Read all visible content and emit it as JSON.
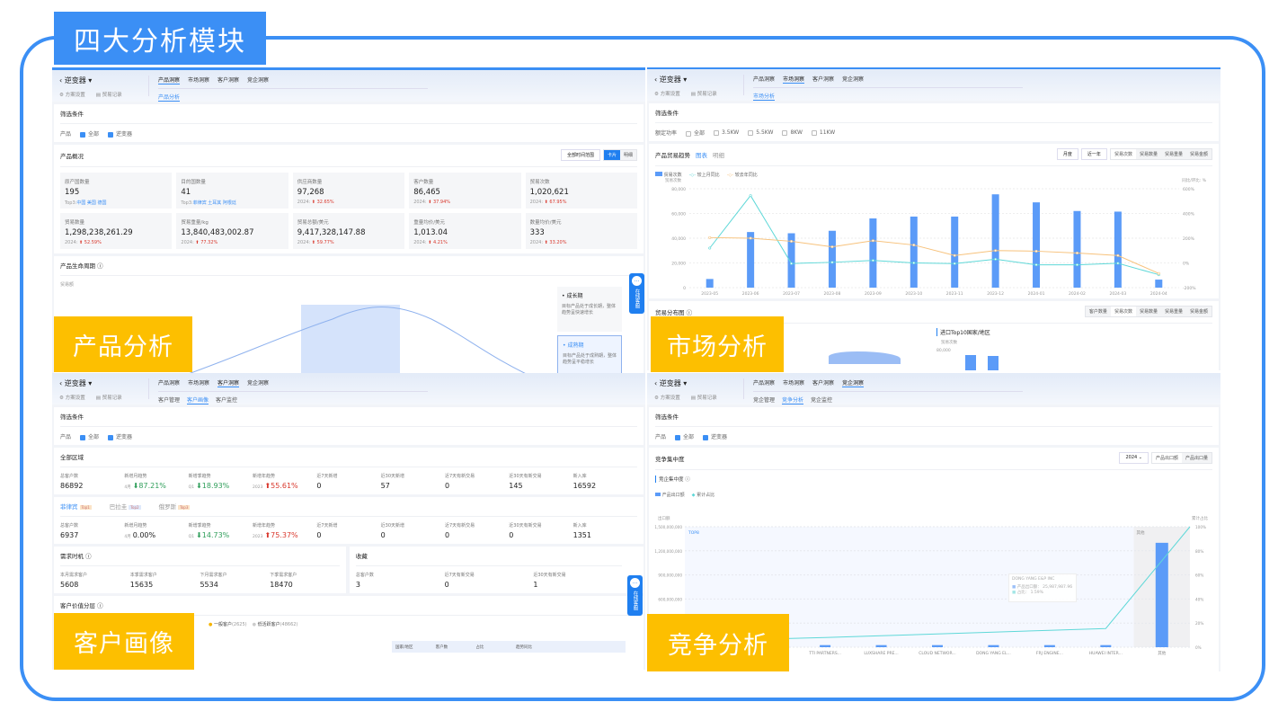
{
  "title": "四大分析模块",
  "colors": {
    "frame": "#3b8ff5",
    "label_bg": "#fdbf00",
    "bar": "#5b9bf8",
    "line_mom": "#5fd8d8",
    "line_yoy": "#f7c27c",
    "up": "#d9382d"
  },
  "common": {
    "product": "逆变器",
    "scheme_settings": "方案设置",
    "trade_records": "贸易记录",
    "top_tabs": [
      "产品洞察",
      "市场洞察",
      "客户洞察",
      "竞企洞察"
    ],
    "filter_title": "筛选条件",
    "filter_product_label": "产品",
    "filter_all": "全部",
    "filter_product": "逆变器",
    "chat": {
      "icon": "chat-bubble-icon",
      "label": "在线客服"
    }
  },
  "product_panel": {
    "label": "产品分析",
    "subtab": "产品分析",
    "overview_title": "产品概况",
    "time_range": "全部时间范围",
    "view_card": "卡片",
    "view_detail": "明细",
    "stats": [
      {
        "k": "原产国数量",
        "v": "195",
        "s_prefix": "Top3:",
        "s": "中国 美国 德国"
      },
      {
        "k": "目的国数量",
        "v": "41",
        "s_prefix": "Top3:",
        "s": "菲律宾 土耳其 阿根廷"
      },
      {
        "k": "供应商数量",
        "v": "97,268",
        "s_prefix": "2024:",
        "s": "32.65%"
      },
      {
        "k": "客户数量",
        "v": "86,465",
        "s_prefix": "2024:",
        "s": "37.94%"
      },
      {
        "k": "贸易次数",
        "v": "1,020,621",
        "s_prefix": "2024:",
        "s": "67.95%"
      },
      {
        "k": "贸易数量",
        "v": "1,298,238,261.29",
        "s_prefix": "2024:",
        "s": "52.59%"
      },
      {
        "k": "贸易重量/kg",
        "v": "13,840,483,002.87",
        "s_prefix": "2024:",
        "s": "77.32%"
      },
      {
        "k": "贸易总额/美元",
        "v": "9,417,328,147.88",
        "s_prefix": "2024:",
        "s": "59.77%"
      },
      {
        "k": "重量均价/美元",
        "v": "1,013.04",
        "s_prefix": "2024:",
        "s": "4.21%"
      },
      {
        "k": "数量均价/美元",
        "v": "333",
        "s_prefix": "2024:",
        "s": "33.20%"
      }
    ],
    "lifecycle_title": "产品生命周期",
    "lifecycle_axis": "贸易额",
    "stages": [
      {
        "name": "成长期",
        "desc": "目标产品处于成长期，整体趋势呈快速增长"
      },
      {
        "name": "成熟期",
        "desc": "目标产品处于成熟期，整体趋势呈平稳增长"
      }
    ]
  },
  "market_panel": {
    "label": "市场分析",
    "subtab": "市场分析",
    "power_label": "额定功率",
    "power_options": [
      "全部",
      "3.5KW",
      "5.5KW",
      "8KW",
      "11KW"
    ],
    "trend_title": "产品贸易趋势",
    "trend_tabs": [
      "图表",
      "明细"
    ],
    "period": "月度",
    "range": "近一年",
    "metrics": [
      "贸易次数",
      "贸易数量",
      "贸易重量",
      "贸易金额"
    ],
    "dist_title": "贸易分布图",
    "dist_metrics": [
      "客户数量",
      "贸易次数",
      "贸易数量",
      "贸易重量",
      "贸易金额"
    ],
    "top10_title": "进口Top10国家/地区",
    "top10_axis": "贸易次数",
    "top10_tick": "80,000"
  },
  "customer_panel": {
    "label": "客户画像",
    "subtabs": [
      "客户管理",
      "客户画像",
      "客户监控"
    ],
    "region_title": "全部区域",
    "metric_keys": [
      "总客户数",
      "新增月趋势",
      "新增季趋势",
      "新增年趋势",
      "近7天新增",
      "近30天新增",
      "近7天有新交易",
      "近30天有新交易",
      "新入库"
    ],
    "all_region": [
      {
        "v": "86892"
      },
      {
        "p": "4月",
        "v": "87.21%",
        "dir": "down"
      },
      {
        "p": "Q1",
        "v": "18.93%",
        "dir": "down"
      },
      {
        "p": "2023",
        "v": "55.61%",
        "dir": "up"
      },
      {
        "v": "0"
      },
      {
        "v": "57"
      },
      {
        "v": "0"
      },
      {
        "v": "145"
      },
      {
        "v": "16592"
      }
    ],
    "region_tabs": [
      {
        "name": "菲律宾",
        "badge": "Top1"
      },
      {
        "name": "巴拉圭",
        "badge": "Top2"
      },
      {
        "name": "俄罗斯",
        "badge": "Top3"
      }
    ],
    "top1": [
      {
        "v": "6937"
      },
      {
        "p": "4月",
        "v": "0.00%",
        "dir": "none"
      },
      {
        "p": "Q1",
        "v": "14.73%",
        "dir": "down"
      },
      {
        "p": "2023",
        "v": "75.37%",
        "dir": "up"
      },
      {
        "v": "0"
      },
      {
        "v": "0"
      },
      {
        "v": "0"
      },
      {
        "v": "0"
      },
      {
        "v": "1351"
      }
    ],
    "demand_title": "需求时机",
    "demand": [
      {
        "k": "本月需求客户",
        "v": "5608"
      },
      {
        "k": "本季需求客户",
        "v": "15635"
      },
      {
        "k": "下月需求客户",
        "v": "5534"
      },
      {
        "k": "下季需求客户",
        "v": "18470"
      }
    ],
    "fav_title": "收藏",
    "fav": [
      {
        "k": "总客户数",
        "v": "3"
      },
      {
        "k": "近7天有新交易",
        "v": "0"
      },
      {
        "k": "近30天有新交易",
        "v": "1"
      }
    ],
    "value_title": "客户价值分层",
    "value_legend": [
      {
        "name": "一般客户",
        "count": "(2625)"
      },
      {
        "name": "低活跃客户",
        "count": "(48662)"
      }
    ],
    "table_headers": [
      "国家/地区",
      "客户数",
      "占比",
      "趋势同比"
    ]
  },
  "competition_panel": {
    "label": "竞争分析",
    "subtabs": [
      "竞企管理",
      "竞争分析",
      "竞企监控"
    ],
    "concentration_title": "竞争集中度",
    "year": "2024",
    "toggle": [
      "产品出口额",
      "产品出口量"
    ],
    "sub_title": "竞企集中度",
    "tooltip": {
      "title": "DONG YANG E&P INC",
      "rows": [
        "产品出口额： 25,987,987.96",
        "占比： 1.59%"
      ]
    }
  },
  "chart_data": [
    {
      "type": "bar",
      "ylabel": "贸易次数",
      "y2label": "同比/环比: %",
      "categories": [
        "2023-05",
        "2023-06",
        "2023-07",
        "2023-08",
        "2023-09",
        "2023-10",
        "2023-11",
        "2023-12",
        "2024-01",
        "2024-02",
        "2024-03",
        "2024-04"
      ],
      "ylim": [
        0,
        80000
      ],
      "y2lim": [
        -200,
        600
      ],
      "yticks": [
        "0",
        "20,000",
        "40,000",
        "60,000",
        "80,000"
      ],
      "y2ticks": [
        "-200%",
        "0%",
        "200%",
        "400%",
        "600%"
      ],
      "series": [
        {
          "name": "贸易次数",
          "type": "bar",
          "axis": "left",
          "values": [
            7000,
            45000,
            44000,
            46000,
            56000,
            57500,
            57500,
            75500,
            69000,
            62000,
            61500,
            6500
          ]
        },
        {
          "name": "较上月同比",
          "type": "line",
          "axis": "right",
          "values": [
            120,
            545,
            -5,
            5,
            20,
            0,
            -5,
            30,
            -15,
            -15,
            -3,
            -95
          ]
        },
        {
          "name": "较去年同比",
          "type": "line",
          "axis": "right",
          "values": [
            205,
            200,
            175,
            130,
            180,
            145,
            60,
            100,
            95,
            80,
            60,
            -85
          ]
        }
      ],
      "legend": "top-left",
      "grid": true
    },
    {
      "type": "bar",
      "ylabel": "出口额",
      "y2label": "累计占比",
      "categories": [
        "TTI PARTNERS...",
        "LUXSHARE PRE...",
        "CLOUD NETWOR...",
        "DONG YANG EL...",
        "FRJ ENGINE...",
        "HUAWEI INTER...",
        "其他"
      ],
      "ylim": [
        0,
        1500000000
      ],
      "y2lim": [
        0,
        100
      ],
      "yticks": [
        "300,000,000",
        "600,000,000",
        "900,000,000",
        "1,200,000,000",
        "1,500,000,000"
      ],
      "y2ticks": [
        "0%",
        "20%",
        "40%",
        "60%",
        "80%",
        "100%"
      ],
      "region_labels": [
        "TOP8",
        "其他"
      ],
      "series": [
        {
          "name": "产品出口额",
          "type": "bar",
          "axis": "left",
          "values": [
            26000000,
            26000000,
            26000000,
            25987988,
            26000000,
            26000000,
            1300000000
          ]
        },
        {
          "name": "累计占比",
          "type": "line",
          "axis": "right",
          "values": [
            8,
            9.5,
            11,
            12.5,
            14,
            15.5,
            100
          ]
        }
      ],
      "legend": "top-left",
      "grid": true
    }
  ]
}
